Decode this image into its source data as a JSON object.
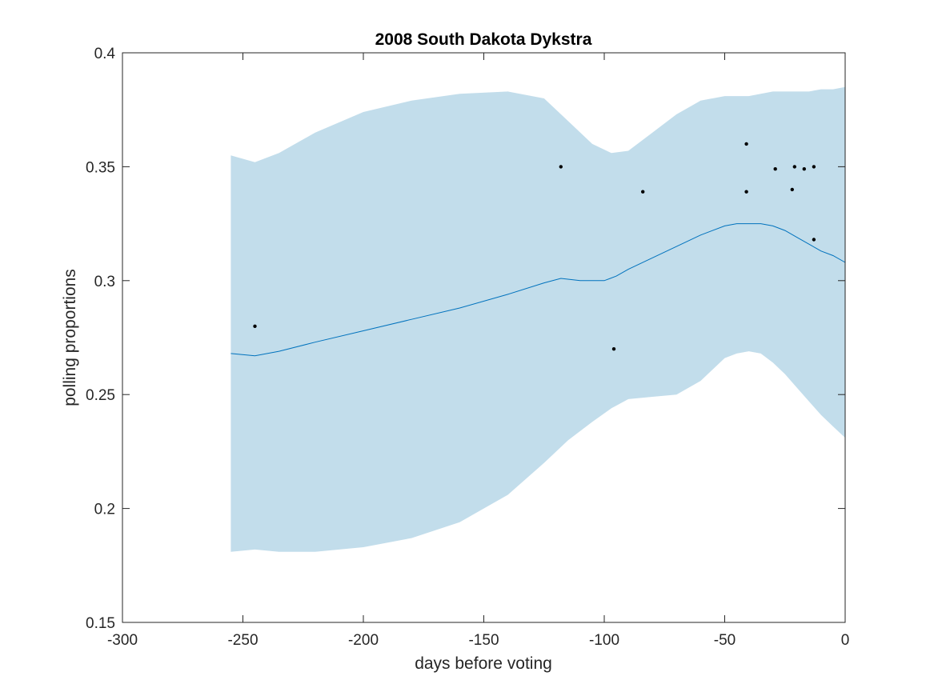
{
  "chart_data": {
    "type": "line",
    "title": "2008 South Dakota Dykstra",
    "xlabel": "days before voting",
    "ylabel": "polling proportions",
    "xlim": [
      -300,
      0
    ],
    "ylim": [
      0.15,
      0.4
    ],
    "xticks": [
      -300,
      -250,
      -200,
      -150,
      -100,
      -50,
      0
    ],
    "yticks": [
      0.15,
      0.2,
      0.25,
      0.3,
      0.35,
      0.4
    ],
    "xtick_labels": [
      "-300",
      "-250",
      "-200",
      "-150",
      "-100",
      "-50",
      "0"
    ],
    "ytick_labels": [
      "0.15",
      "0.2",
      "0.25",
      "0.3",
      "0.35",
      "0.4"
    ],
    "grid": false,
    "colors": {
      "trend": "#0072bd",
      "band": "#c2ddeb",
      "points": "#000000",
      "axes": "#262626"
    },
    "band": {
      "x": [
        -255,
        -245,
        -235,
        -220,
        -200,
        -180,
        -160,
        -140,
        -125,
        -115,
        -105,
        -97,
        -90,
        -80,
        -70,
        -60,
        -50,
        -45,
        -40,
        -35,
        -30,
        -25,
        -20,
        -15,
        -10,
        -5,
        0
      ],
      "upper": [
        0.355,
        0.352,
        0.356,
        0.365,
        0.374,
        0.379,
        0.382,
        0.383,
        0.38,
        0.37,
        0.36,
        0.356,
        0.357,
        0.365,
        0.373,
        0.379,
        0.381,
        0.381,
        0.381,
        0.382,
        0.383,
        0.383,
        0.383,
        0.383,
        0.384,
        0.384,
        0.385
      ],
      "lower": [
        0.181,
        0.182,
        0.181,
        0.181,
        0.183,
        0.187,
        0.194,
        0.206,
        0.22,
        0.23,
        0.238,
        0.244,
        0.248,
        0.249,
        0.25,
        0.256,
        0.266,
        0.268,
        0.269,
        0.268,
        0.264,
        0.259,
        0.253,
        0.247,
        0.241,
        0.236,
        0.231
      ]
    },
    "trend": {
      "x": [
        -255,
        -245,
        -235,
        -220,
        -200,
        -180,
        -160,
        -140,
        -125,
        -118,
        -110,
        -100,
        -95,
        -90,
        -80,
        -70,
        -60,
        -50,
        -45,
        -40,
        -35,
        -30,
        -25,
        -20,
        -15,
        -10,
        -5,
        0
      ],
      "y": [
        0.268,
        0.267,
        0.269,
        0.273,
        0.278,
        0.283,
        0.288,
        0.294,
        0.299,
        0.301,
        0.3,
        0.3,
        0.302,
        0.305,
        0.31,
        0.315,
        0.32,
        0.324,
        0.325,
        0.325,
        0.325,
        0.324,
        0.322,
        0.319,
        0.316,
        0.313,
        0.311,
        0.308
      ]
    },
    "points": [
      {
        "x": -245,
        "y": 0.28
      },
      {
        "x": -118,
        "y": 0.35
      },
      {
        "x": -96,
        "y": 0.27
      },
      {
        "x": -84,
        "y": 0.339
      },
      {
        "x": -41,
        "y": 0.36
      },
      {
        "x": -41,
        "y": 0.339
      },
      {
        "x": -29,
        "y": 0.349
      },
      {
        "x": -22,
        "y": 0.34
      },
      {
        "x": -21,
        "y": 0.35
      },
      {
        "x": -17,
        "y": 0.349
      },
      {
        "x": -13,
        "y": 0.35
      },
      {
        "x": -13,
        "y": 0.318
      }
    ]
  }
}
